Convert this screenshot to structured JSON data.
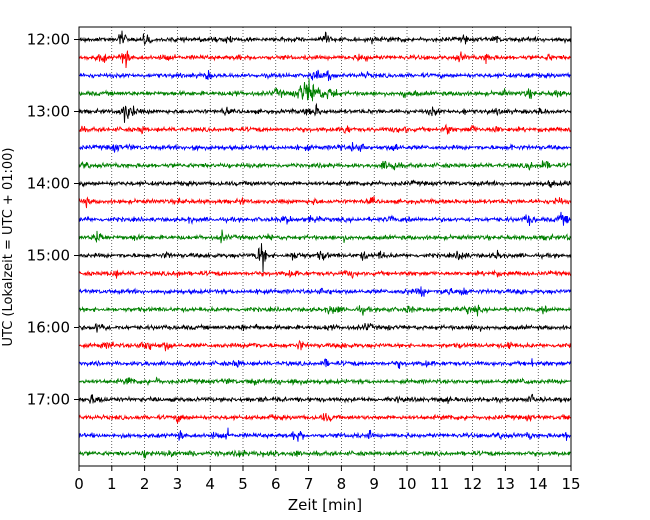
{
  "chart_data": {
    "type": "line",
    "xlabel": "Zeit  [min]",
    "ylabel": "UTC (Lokalzeit = UTC + 01:00)",
    "xlim": [
      0,
      15
    ],
    "x_ticks": [
      "0",
      "1",
      "2",
      "3",
      "4",
      "5",
      "6",
      "7",
      "8",
      "9",
      "10",
      "11",
      "12",
      "13",
      "14",
      "15"
    ],
    "y_ticks": [
      "12:00",
      "13:00",
      "14:00",
      "15:00",
      "16:00",
      "17:00"
    ],
    "trace_interval_minutes": 15,
    "trace_count": 24,
    "trace_colors": [
      "#000000",
      "#ff0000",
      "#0000ff",
      "#008000"
    ],
    "grid": "vertical dotted at each minute",
    "events": [
      {
        "trace": 1,
        "minute": 1.4,
        "amplitude": "medium"
      },
      {
        "trace": 0,
        "minute": 1.3,
        "amplitude": "small"
      },
      {
        "trace": 3,
        "minute": 7.0,
        "amplitude": "large"
      },
      {
        "trace": 4,
        "minute": 1.4,
        "amplitude": "medium"
      },
      {
        "trace": 12,
        "minute": 5.6,
        "amplitude": "medium"
      },
      {
        "trace": 12,
        "minute": 5.5,
        "amplitude": "small"
      }
    ]
  }
}
